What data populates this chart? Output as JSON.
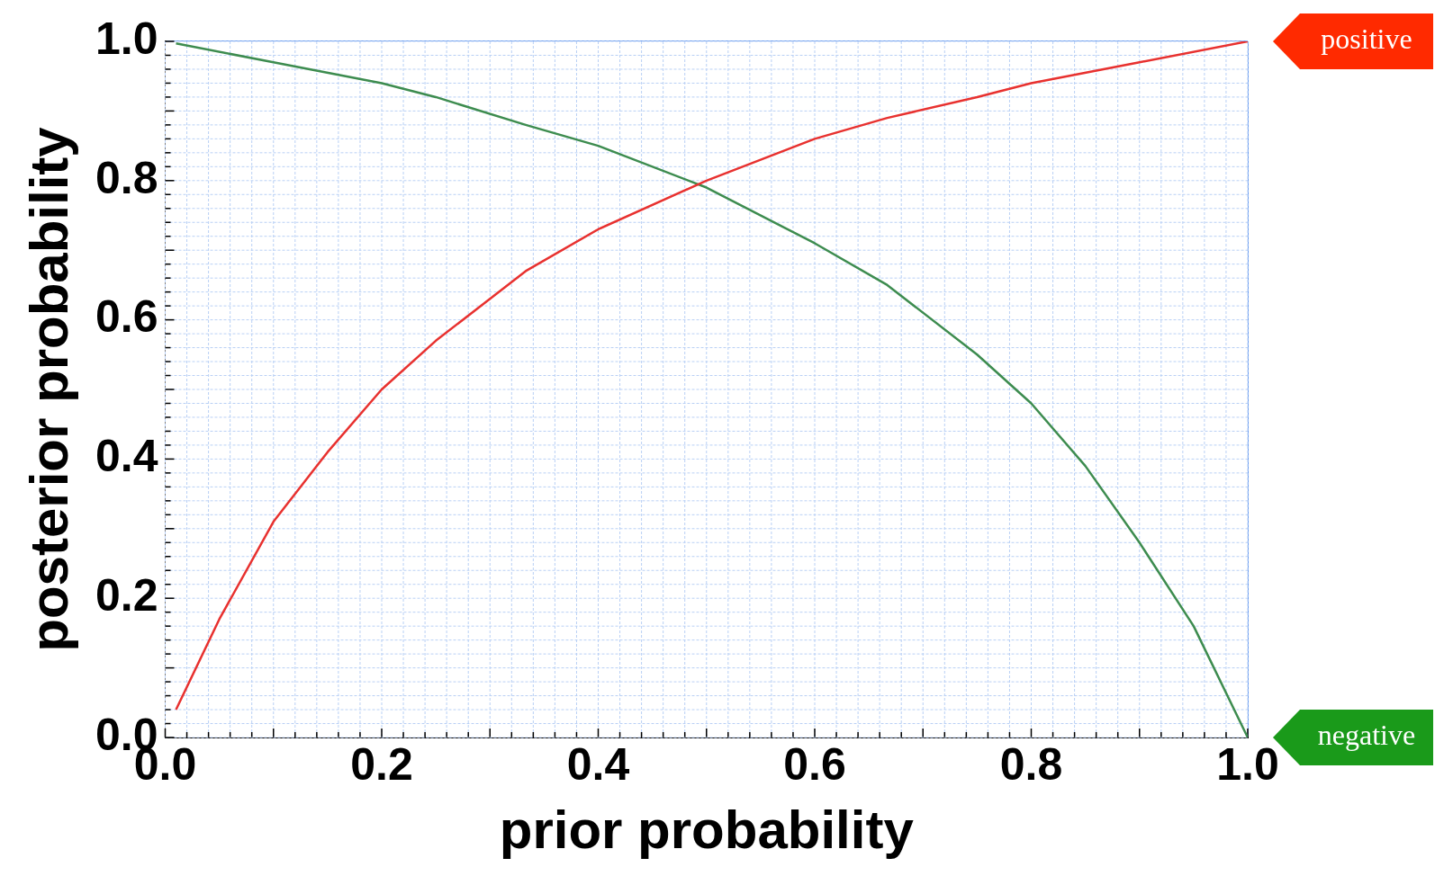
{
  "chart_data": {
    "type": "line",
    "xlabel": "prior probability",
    "ylabel": "posterior probability",
    "xlim": [
      0,
      1
    ],
    "ylim": [
      0,
      1
    ],
    "xticks": [
      {
        "value": 0,
        "label": "0.0"
      },
      {
        "value": 0.2,
        "label": "0.2"
      },
      {
        "value": 0.4,
        "label": "0.4"
      },
      {
        "value": 0.6,
        "label": "0.6"
      },
      {
        "value": 0.8,
        "label": "0.8"
      },
      {
        "value": 1,
        "label": "1.0"
      }
    ],
    "yticks": [
      {
        "value": 0,
        "label": "0.0"
      },
      {
        "value": 0.2,
        "label": "0.2"
      },
      {
        "value": 0.4,
        "label": "0.4"
      },
      {
        "value": 0.6,
        "label": "0.6"
      },
      {
        "value": 0.8,
        "label": "0.8"
      },
      {
        "value": 1,
        "label": "1.0"
      }
    ],
    "grid": true,
    "marker": "none",
    "line_style": "solid",
    "series": [
      {
        "name": "positive",
        "color": "#e8312f",
        "x": [
          0.01,
          0.05,
          0.1,
          0.15,
          0.2,
          0.25,
          0.333,
          0.4,
          0.5,
          0.6,
          0.667,
          0.75,
          0.8,
          0.9,
          1.0
        ],
        "values": [
          0.04,
          0.17,
          0.31,
          0.41,
          0.5,
          0.57,
          0.67,
          0.73,
          0.8,
          0.86,
          0.89,
          0.92,
          0.94,
          0.97,
          1.0
        ]
      },
      {
        "name": "negative",
        "color": "#3d8c4f",
        "x": [
          0.01,
          0.1,
          0.2,
          0.25,
          0.333,
          0.4,
          0.5,
          0.6,
          0.667,
          0.75,
          0.8,
          0.85,
          0.9,
          0.95,
          1.0
        ],
        "values": [
          0.997,
          0.97,
          0.94,
          0.92,
          0.88,
          0.85,
          0.79,
          0.71,
          0.65,
          0.55,
          0.48,
          0.39,
          0.28,
          0.16,
          0.0
        ]
      }
    ]
  }
}
